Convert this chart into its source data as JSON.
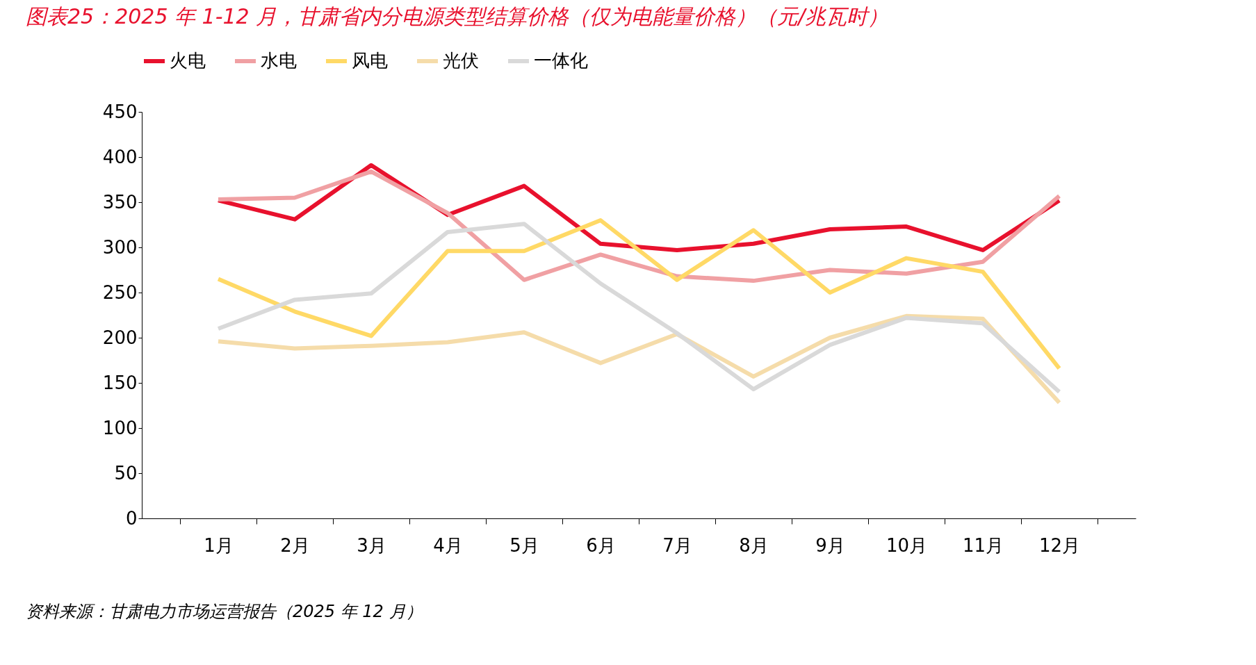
{
  "chart_data": {
    "type": "line",
    "title": "图表25：2025 年 1-12 月，甘肃省内分电源类型结算价格（仅为电能量价格）（元/兆瓦时）",
    "categories": [
      "1月",
      "2月",
      "3月",
      "4月",
      "5月",
      "6月",
      "7月",
      "8月",
      "9月",
      "10月",
      "11月",
      "12月"
    ],
    "series": [
      {
        "name": "火电",
        "color": "#e8112d",
        "values": [
          352,
          331,
          391,
          336,
          368,
          304,
          297,
          304,
          320,
          323,
          297,
          352
        ]
      },
      {
        "name": "水电",
        "color": "#f0a0a3",
        "values": [
          353,
          355,
          384,
          338,
          264,
          292,
          268,
          263,
          275,
          271,
          284,
          357
        ]
      },
      {
        "name": "风电",
        "color": "#ffd966",
        "values": [
          265,
          229,
          202,
          296,
          296,
          330,
          264,
          319,
          250,
          288,
          273,
          166
        ]
      },
      {
        "name": "光伏",
        "color": "#f5dcaa",
        "values": [
          196,
          188,
          191,
          195,
          206,
          172,
          204,
          157,
          200,
          224,
          221,
          128
        ]
      },
      {
        "name": "一体化",
        "color": "#d9d9d9",
        "values": [
          210,
          242,
          249,
          317,
          326,
          260,
          205,
          143,
          192,
          222,
          216,
          140
        ]
      }
    ],
    "ylim": [
      0,
      450
    ],
    "yticks": [
      0,
      50,
      100,
      150,
      200,
      250,
      300,
      350,
      400,
      450
    ],
    "grid": false,
    "legend": "top",
    "marker": "none",
    "line_style": "solid",
    "annotations": [
      "资料来源：甘肃电力市场运营报告（2025 年 12 月）"
    ]
  }
}
